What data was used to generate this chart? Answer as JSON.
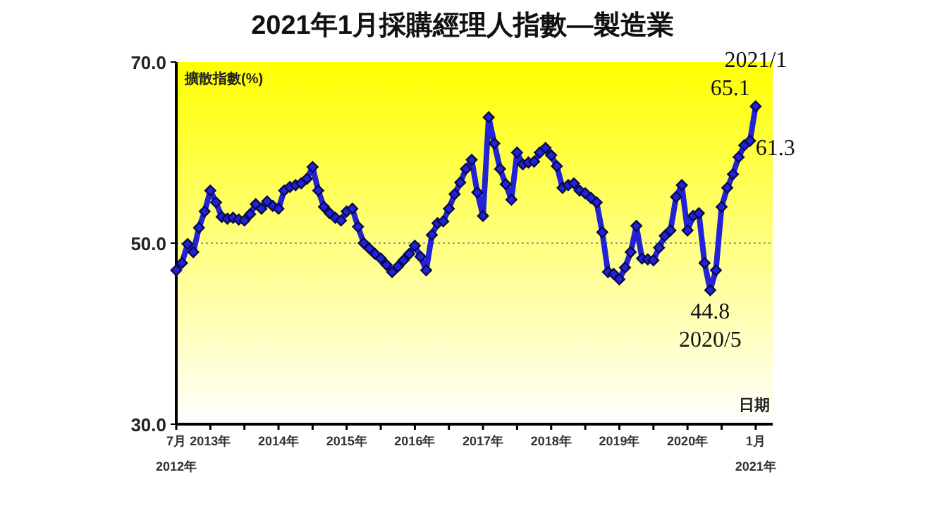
{
  "chart_data": {
    "type": "line",
    "title": "2021年1月採購經理人指數—製造業",
    "xlabel": "日期",
    "ylabel": "擴散指數(%)",
    "x": [
      "2012-07",
      "2012-08",
      "2012-09",
      "2012-10",
      "2012-11",
      "2012-12",
      "2013-01",
      "2013-02",
      "2013-03",
      "2013-04",
      "2013-05",
      "2013-06",
      "2013-07",
      "2013-08",
      "2013-09",
      "2013-10",
      "2013-11",
      "2013-12",
      "2014-01",
      "2014-02",
      "2014-03",
      "2014-04",
      "2014-05",
      "2014-06",
      "2014-07",
      "2014-08",
      "2014-09",
      "2014-10",
      "2014-11",
      "2014-12",
      "2015-01",
      "2015-02",
      "2015-03",
      "2015-04",
      "2015-05",
      "2015-06",
      "2015-07",
      "2015-08",
      "2015-09",
      "2015-10",
      "2015-11",
      "2015-12",
      "2016-01",
      "2016-02",
      "2016-03",
      "2016-04",
      "2016-05",
      "2016-06",
      "2016-07",
      "2016-08",
      "2016-09",
      "2016-10",
      "2016-11",
      "2016-12",
      "2017-01",
      "2017-02",
      "2017-03",
      "2017-04",
      "2017-05",
      "2017-06",
      "2017-07",
      "2017-08",
      "2017-09",
      "2017-10",
      "2017-11",
      "2017-12",
      "2018-01",
      "2018-02",
      "2018-03",
      "2018-04",
      "2018-05",
      "2018-06",
      "2018-07",
      "2018-08",
      "2018-09",
      "2018-10",
      "2018-11",
      "2018-12",
      "2019-01",
      "2019-02",
      "2019-03",
      "2019-04",
      "2019-05",
      "2019-06",
      "2019-07",
      "2019-08",
      "2019-09",
      "2019-10",
      "2019-11",
      "2019-12",
      "2020-01",
      "2020-02",
      "2020-03",
      "2020-04",
      "2020-05",
      "2020-06",
      "2020-07",
      "2020-08",
      "2020-09",
      "2020-10",
      "2020-11",
      "2020-12",
      "2021-01"
    ],
    "series": [
      {
        "color": "#2222d8",
        "values": [
          47.0,
          47.8,
          49.9,
          49.0,
          51.7,
          53.5,
          55.8,
          54.5,
          52.9,
          52.7,
          52.8,
          52.6,
          52.5,
          53.2,
          54.3,
          53.8,
          54.6,
          54.1,
          53.8,
          55.8,
          56.2,
          56.4,
          56.6,
          57.1,
          58.4,
          55.8,
          54.0,
          53.3,
          52.8,
          52.5,
          53.5,
          53.8,
          51.8,
          50.0,
          49.4,
          48.8,
          48.3,
          47.6,
          46.8,
          47.4,
          48.1,
          48.8,
          49.7,
          48.5,
          47.0,
          50.9,
          52.2,
          52.4,
          53.8,
          55.4,
          56.7,
          58.2,
          59.2,
          55.6,
          53.0,
          63.9,
          61.0,
          58.2,
          56.5,
          54.8,
          60.0,
          58.7,
          58.9,
          59.0,
          60.0,
          60.5,
          59.7,
          58.5,
          56.1,
          56.4,
          56.6,
          55.8,
          55.5,
          55.0,
          54.5,
          51.2,
          46.8,
          46.6,
          46.0,
          47.3,
          49.0,
          51.9,
          48.3,
          48.2,
          48.1,
          49.5,
          50.8,
          51.4,
          55.1,
          56.4,
          51.4,
          53.0,
          53.3,
          47.8,
          44.8,
          47.0,
          54.0,
          56.1,
          57.6,
          59.5,
          60.8,
          61.3,
          65.1
        ]
      }
    ],
    "xlim": [
      "2012-07",
      "2021-04"
    ],
    "xticks": [
      {
        "value": "2012-07",
        "label": "7月\n2012年"
      },
      {
        "value": "2013-01",
        "label": "2013年"
      },
      {
        "value": "2013-07",
        "label": null
      },
      {
        "value": "2014-01",
        "label": "2014年"
      },
      {
        "value": "2014-07",
        "label": null
      },
      {
        "value": "2015-01",
        "label": "2015年"
      },
      {
        "value": "2015-07",
        "label": null
      },
      {
        "value": "2016-01",
        "label": "2016年"
      },
      {
        "value": "2016-07",
        "label": null
      },
      {
        "value": "2017-01",
        "label": "2017年"
      },
      {
        "value": "2017-07",
        "label": null
      },
      {
        "value": "2018-01",
        "label": "2018年"
      },
      {
        "value": "2018-07",
        "label": null
      },
      {
        "value": "2019-01",
        "label": "2019年"
      },
      {
        "value": "2019-07",
        "label": null
      },
      {
        "value": "2020-01",
        "label": "2020年"
      },
      {
        "value": "2020-07",
        "label": null
      },
      {
        "value": "2021-01",
        "label": "1月\n2021年"
      }
    ],
    "ylim": [
      30,
      70
    ],
    "yticks": [
      {
        "value": 30,
        "label": "30.0"
      },
      {
        "value": 50,
        "label": "50.0"
      },
      {
        "value": 70,
        "label": "70.0"
      }
    ],
    "ref_lines": [
      {
        "axis": "y",
        "value": 50,
        "color": "#999999",
        "line_style": "dotted"
      }
    ],
    "marker": "diamond",
    "line_style": "solid",
    "annotations": [
      {
        "text": "2021/1",
        "x": "2021-01",
        "y": 65.1
      },
      {
        "text": "65.1",
        "x": "2021-01",
        "y": 65.1
      },
      {
        "text": "61.3",
        "x": "2020-12",
        "y": 61.3
      },
      {
        "text": "44.8",
        "x": "2020-05",
        "y": 44.8
      },
      {
        "text": "2020/5",
        "x": "2020-05",
        "y": 44.8
      }
    ]
  }
}
